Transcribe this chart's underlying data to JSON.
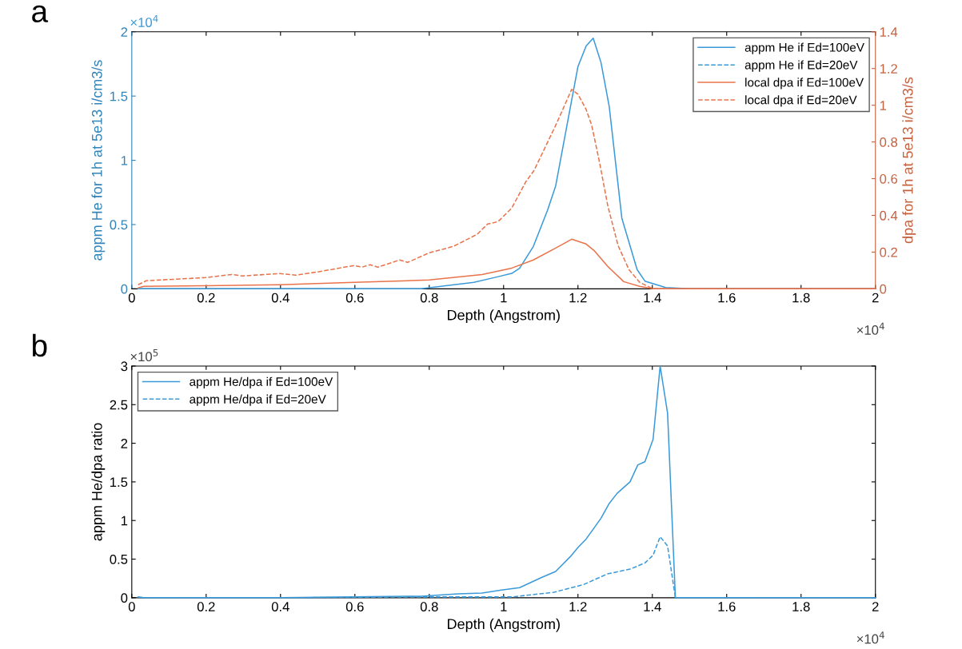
{
  "chart_data": [
    {
      "type": "line",
      "xlabel": "Depth (Angstrom)",
      "ylabel": "appm He for 1h at 5e13 i/cm3/s",
      "y2label": "dpa for 1h at 5e13 i/cm3/s",
      "annotations": [
        "a",
        "×10$^{4}$",
        "×10$^{4}$"
      ],
      "legend": "top right",
      "grid": false,
      "xlim": [
        0,
        2
      ],
      "xticks": [
        0,
        0.2,
        0.4,
        0.6,
        0.8,
        1,
        1.2,
        1.4,
        1.6,
        1.8,
        2
      ],
      "ylim": [
        0,
        2
      ],
      "yticks": [
        0,
        0.5,
        1,
        1.5,
        2
      ],
      "y2lim": [
        0,
        1.4
      ],
      "y2ticks": [
        0,
        0.2,
        0.4,
        0.6,
        0.8,
        1,
        1.2,
        1.4
      ],
      "series": [
        {
          "name": "appm He if Ed=100eV",
          "color": "#3a9ad9",
          "line_style": "solid",
          "axis": "y",
          "x": [
            0.017,
            0.4,
            0.778,
            0.92,
            0.979,
            1.022,
            1.043,
            1.08,
            1.118,
            1.14,
            1.2,
            1.222,
            1.241,
            1.262,
            1.284,
            1.318,
            1.359,
            1.38,
            1.436,
            1.5,
            2
          ],
          "values": [
            0,
            0,
            0,
            0.05,
            0.09,
            0.12,
            0.16,
            0.33,
            0.61,
            0.8,
            1.73,
            1.89,
            1.95,
            1.76,
            1.42,
            0.55,
            0.15,
            0.06,
            0.01,
            0,
            0
          ]
        },
        {
          "name": "appm He if Ed=20eV",
          "color": "#3a9ad9",
          "line_style": "dashed",
          "axis": "y"
        },
        {
          "name": "local dpa if Ed=100eV",
          "color": "#e8734a",
          "line_style": "solid",
          "axis": "y2",
          "x": [
            0.017,
            0.032,
            0.198,
            0.398,
            0.598,
            0.8,
            0.942,
            1.022,
            1.08,
            1.14,
            1.183,
            1.222,
            1.243,
            1.28,
            1.323,
            1.366,
            1.402,
            2
          ],
          "values": [
            0.005,
            0.013,
            0.017,
            0.022,
            0.035,
            0.048,
            0.078,
            0.113,
            0.157,
            0.222,
            0.27,
            0.244,
            0.209,
            0.122,
            0.039,
            0.013,
            0,
            0
          ]
        },
        {
          "name": "local dpa if Ed=20eV",
          "color": "#e8734a",
          "line_style": "dashed",
          "axis": "y2",
          "x": [
            0.017,
            0.039,
            0.198,
            0.269,
            0.297,
            0.398,
            0.441,
            0.512,
            0.598,
            0.619,
            0.641,
            0.662,
            0.72,
            0.742,
            0.8,
            0.865,
            0.929,
            0.957,
            0.985,
            1.022,
            1.06,
            1.082,
            1.14,
            1.183,
            1.2,
            1.222,
            1.237,
            1.258,
            1.28,
            1.308,
            1.337,
            1.366,
            1.402,
            2
          ],
          "values": [
            0.022,
            0.044,
            0.061,
            0.078,
            0.07,
            0.083,
            0.074,
            0.096,
            0.127,
            0.118,
            0.131,
            0.118,
            0.157,
            0.144,
            0.196,
            0.231,
            0.297,
            0.353,
            0.366,
            0.44,
            0.584,
            0.645,
            0.89,
            1.086,
            1.06,
            0.977,
            0.89,
            0.689,
            0.454,
            0.235,
            0.105,
            0.035,
            0,
            0
          ]
        }
      ]
    },
    {
      "type": "line",
      "xlabel": "Depth (Angstrom)",
      "ylabel": "appm He/dpa ratio",
      "annotations": [
        "b",
        "×10$^{5}$",
        "×10$^{4}$"
      ],
      "legend": "top left",
      "grid": false,
      "xlim": [
        0,
        2
      ],
      "xticks": [
        0,
        0.2,
        0.4,
        0.6,
        0.8,
        1,
        1.2,
        1.4,
        1.6,
        1.8,
        2
      ],
      "ylim": [
        0,
        3
      ],
      "yticks": [
        0,
        0.5,
        1,
        1.5,
        2,
        2.5,
        3
      ],
      "series": [
        {
          "name": "appm He/dpa if Ed=100eV",
          "color": "#3a9ad9",
          "line_style": "solid",
          "x": [
            0.017,
            0.032,
            0.4,
            0.778,
            0.877,
            0.942,
            0.994,
            1.043,
            1.101,
            1.14,
            1.179,
            1.2,
            1.222,
            1.262,
            1.284,
            1.305,
            1.34,
            1.361,
            1.38,
            1.402,
            1.421,
            1.441,
            1.462,
            2
          ],
          "values": [
            0.01,
            0,
            0,
            0.02,
            0.05,
            0.06,
            0.1,
            0.13,
            0.26,
            0.34,
            0.53,
            0.65,
            0.76,
            1.03,
            1.22,
            1.35,
            1.5,
            1.72,
            1.76,
            2.05,
            3,
            2.39,
            0,
            0
          ]
        },
        {
          "name": "appm He/dpa if Ed=20eV",
          "color": "#3a9ad9",
          "line_style": "dashed",
          "x": [
            0.017,
            0.032,
            0.4,
            0.778,
            0.942,
            1.022,
            1.135,
            1.215,
            1.28,
            1.34,
            1.38,
            1.402,
            1.421,
            1.441,
            1.462,
            2
          ],
          "values": [
            0.01,
            0,
            0,
            0.01,
            0.01,
            0.01,
            0.07,
            0.17,
            0.31,
            0.37,
            0.45,
            0.55,
            0.79,
            0.67,
            0,
            0
          ]
        }
      ]
    }
  ]
}
